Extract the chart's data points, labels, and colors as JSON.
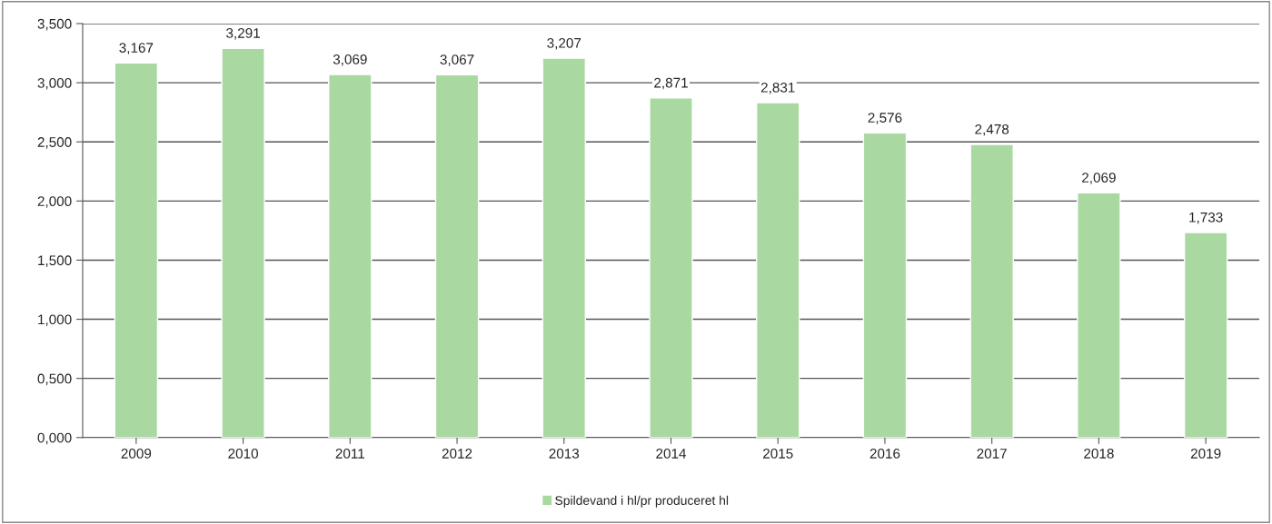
{
  "chart_data": {
    "type": "bar",
    "categories": [
      "2009",
      "2010",
      "2011",
      "2012",
      "2013",
      "2014",
      "2015",
      "2016",
      "2017",
      "2018",
      "2019"
    ],
    "series": [
      {
        "name": "Spildevand i hl/pr produceret hl",
        "color": "#a9d8a0",
        "values": [
          3.167,
          3.291,
          3.069,
          3.067,
          3.207,
          2.871,
          2.831,
          2.576,
          2.478,
          2.069,
          1.733
        ],
        "value_labels": [
          "3,167",
          "3,291",
          "3,069",
          "3,067",
          "3,207",
          "2,871",
          "2,831",
          "2,576",
          "2,478",
          "2,069",
          "1,733"
        ]
      }
    ],
    "ylim": [
      0,
      3.5
    ],
    "yticks": [
      {
        "value": 0,
        "label": "0,000"
      },
      {
        "value": 0.5,
        "label": "0,500"
      },
      {
        "value": 1,
        "label": "1,000"
      },
      {
        "value": 1.5,
        "label": "1,500"
      },
      {
        "value": 2,
        "label": "2,000"
      },
      {
        "value": 2.5,
        "label": "2,500"
      },
      {
        "value": 3,
        "label": "3,000"
      },
      {
        "value": 3.5,
        "label": "3,500"
      }
    ],
    "grid": "y",
    "legend": "bottom"
  }
}
